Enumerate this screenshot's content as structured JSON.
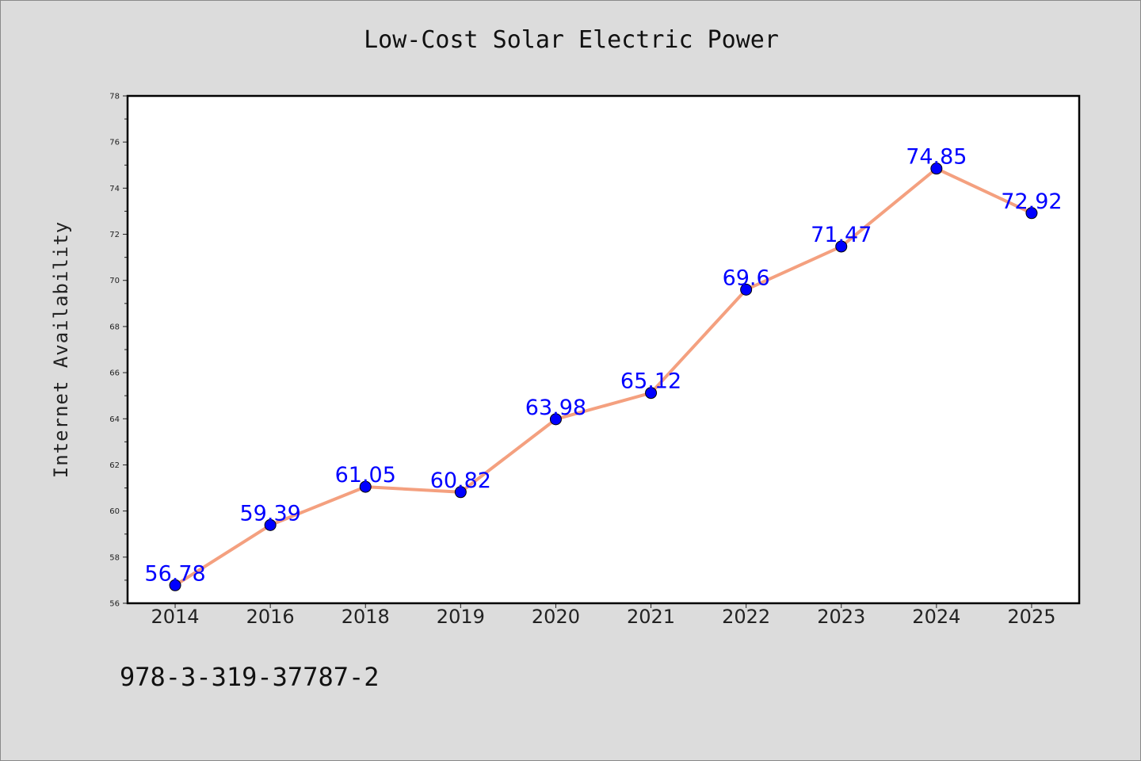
{
  "chart_data": {
    "type": "line",
    "title": "Low-Cost Solar Electric Power",
    "xlabel": "",
    "ylabel": "Internet Availability",
    "categories": [
      "2014",
      "2016",
      "2018",
      "2019",
      "2020",
      "2021",
      "2022",
      "2023",
      "2024",
      "2025"
    ],
    "series": [
      {
        "values": [
          56.78,
          59.39,
          61.05,
          60.82,
          63.98,
          65.12,
          69.6,
          71.47,
          74.85,
          72.92
        ],
        "labels": [
          "56.78",
          "59.39",
          "61.05",
          "60.82",
          "63.98",
          "65.12",
          "69.6",
          "71.47",
          "74.85",
          "72.92"
        ]
      }
    ],
    "ylim": [
      56,
      78
    ],
    "yticks": [
      "56",
      "58",
      "60",
      "62",
      "64",
      "66",
      "68",
      "70",
      "72",
      "74",
      "76",
      "78"
    ],
    "grid": false,
    "colors": {
      "line": "#f4a07f",
      "marker": "#0000ff",
      "label": "#0000ff",
      "background": "#dcdcdc",
      "plot_background": "#ffffff"
    }
  },
  "footer": {
    "isbn": "978-3-319-37787-2"
  }
}
